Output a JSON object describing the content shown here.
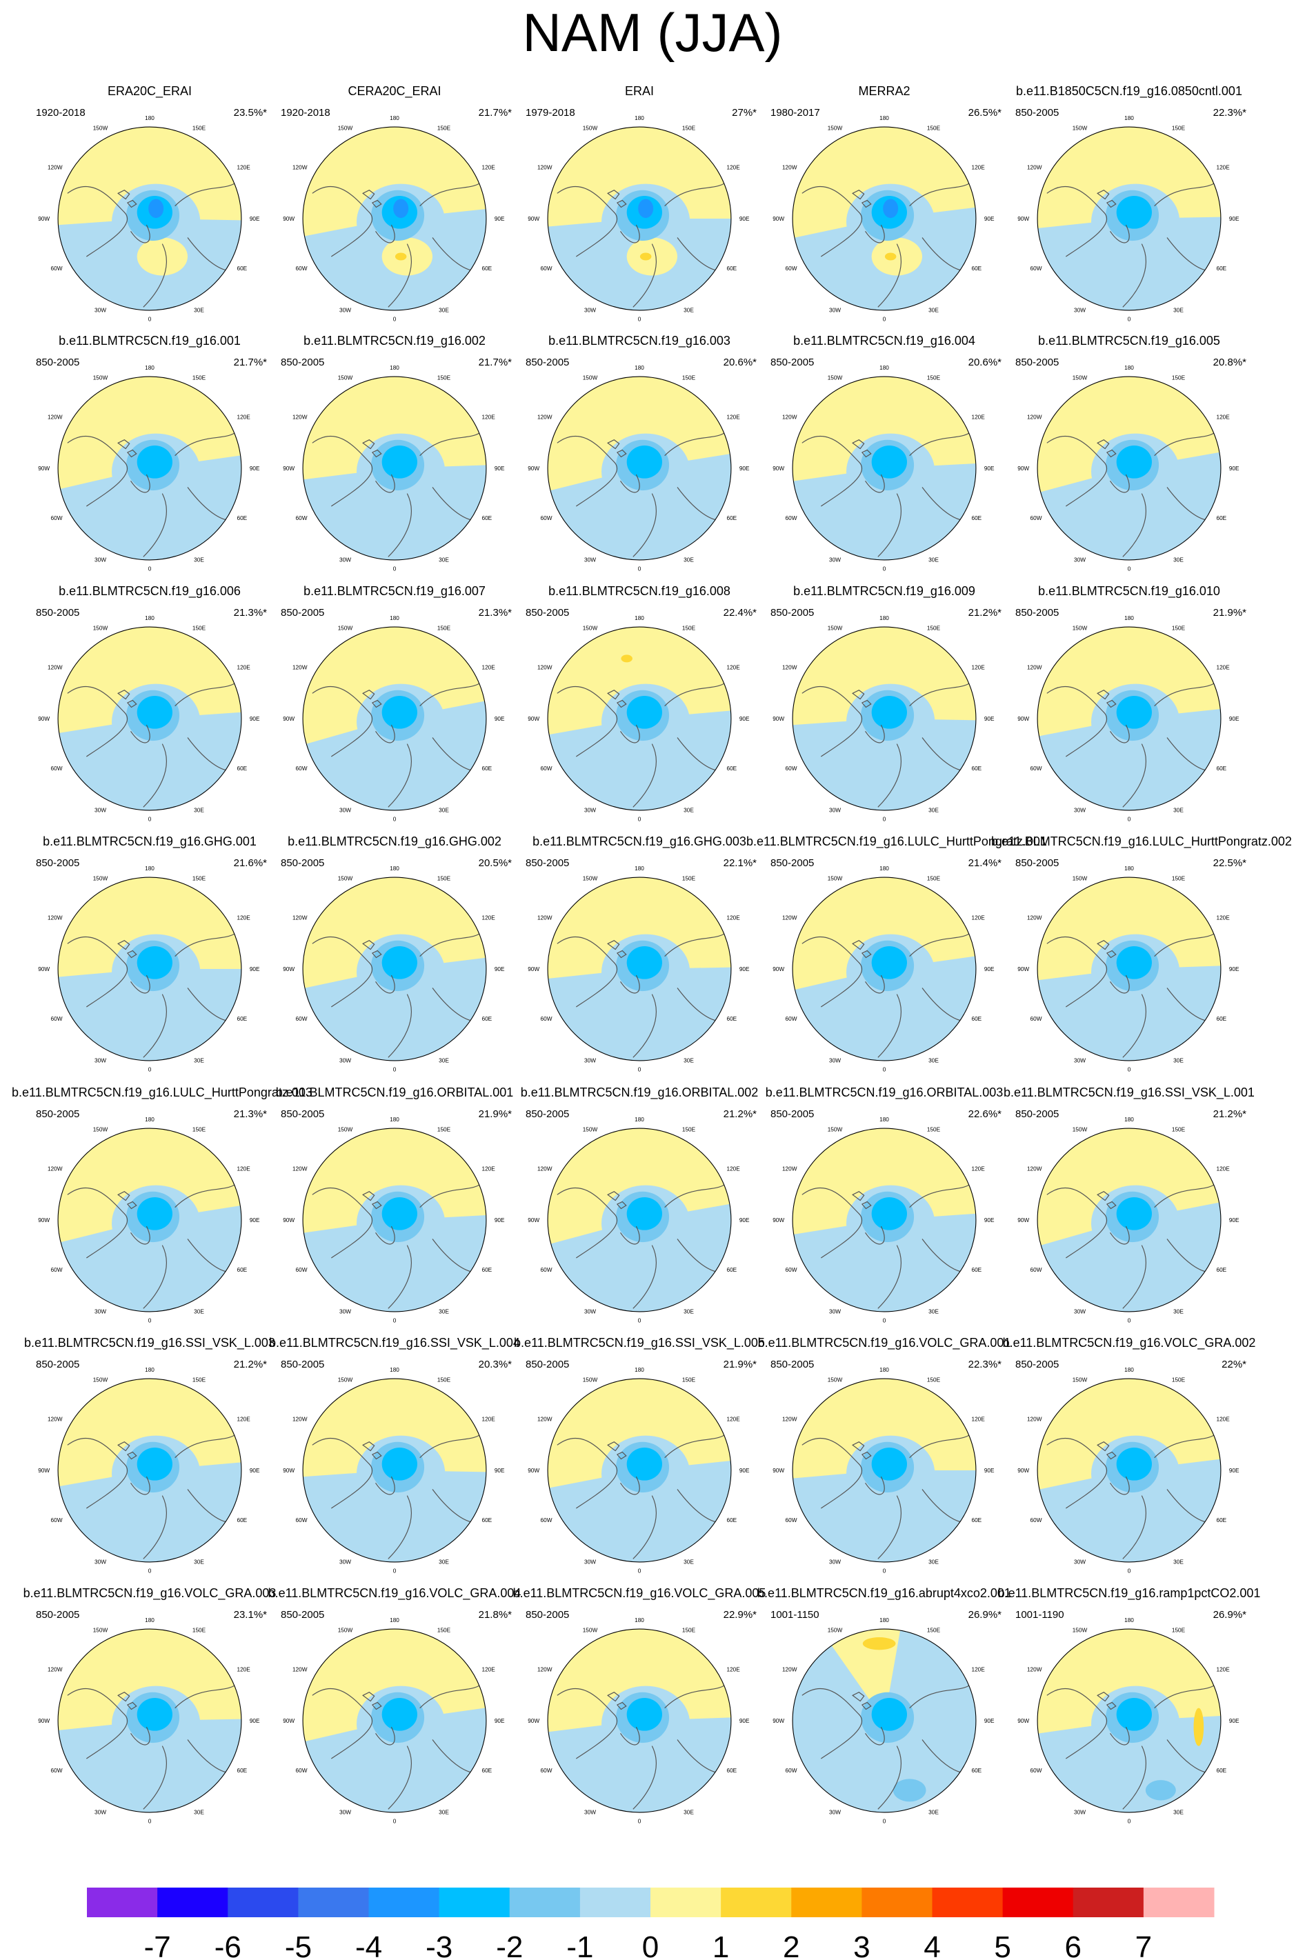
{
  "title": "NAM (JJA)",
  "panels": [
    {
      "name": "ERA20C_ERAI",
      "years": "1920-2018",
      "pct": "23.5%*"
    },
    {
      "name": "CERA20C_ERAI",
      "years": "1920-2018",
      "pct": "21.7%*"
    },
    {
      "name": "ERAI",
      "years": "1979-2018",
      "pct": "27%*"
    },
    {
      "name": "MERRA2",
      "years": "1980-2017",
      "pct": "26.5%*"
    },
    {
      "name": "b.e11.B1850C5CN.f19_g16.0850cntl.001",
      "years": "850-2005",
      "pct": "22.3%*"
    },
    {
      "name": "b.e11.BLMTRC5CN.f19_g16.001",
      "years": "850-2005",
      "pct": "21.7%*"
    },
    {
      "name": "b.e11.BLMTRC5CN.f19_g16.002",
      "years": "850-2005",
      "pct": "21.7%*"
    },
    {
      "name": "b.e11.BLMTRC5CN.f19_g16.003",
      "years": "850-2005",
      "pct": "20.6%*"
    },
    {
      "name": "b.e11.BLMTRC5CN.f19_g16.004",
      "years": "850-2005",
      "pct": "20.6%*"
    },
    {
      "name": "b.e11.BLMTRC5CN.f19_g16.005",
      "years": "850-2005",
      "pct": "20.8%*"
    },
    {
      "name": "b.e11.BLMTRC5CN.f19_g16.006",
      "years": "850-2005",
      "pct": "21.3%*"
    },
    {
      "name": "b.e11.BLMTRC5CN.f19_g16.007",
      "years": "850-2005",
      "pct": "21.3%*"
    },
    {
      "name": "b.e11.BLMTRC5CN.f19_g16.008",
      "years": "850-2005",
      "pct": "22.4%*"
    },
    {
      "name": "b.e11.BLMTRC5CN.f19_g16.009",
      "years": "850-2005",
      "pct": "21.2%*"
    },
    {
      "name": "b.e11.BLMTRC5CN.f19_g16.010",
      "years": "850-2005",
      "pct": "21.9%*"
    },
    {
      "name": "b.e11.BLMTRC5CN.f19_g16.GHG.001",
      "years": "850-2005",
      "pct": "21.6%*"
    },
    {
      "name": "b.e11.BLMTRC5CN.f19_g16.GHG.002",
      "years": "850-2005",
      "pct": "20.5%*"
    },
    {
      "name": "b.e11.BLMTRC5CN.f19_g16.GHG.003",
      "years": "850-2005",
      "pct": "22.1%*"
    },
    {
      "name": "b.e11.BLMTRC5CN.f19_g16.LULC_HurttPongratz.001",
      "years": "850-2005",
      "pct": "21.4%*"
    },
    {
      "name": "b.e11.BLMTRC5CN.f19_g16.LULC_HurttPongratz.002",
      "years": "850-2005",
      "pct": "22.5%*"
    },
    {
      "name": "b.e11.BLMTRC5CN.f19_g16.LULC_HurttPongratz.003",
      "years": "850-2005",
      "pct": "21.3%*"
    },
    {
      "name": "b.e11.BLMTRC5CN.f19_g16.ORBITAL.001",
      "years": "850-2005",
      "pct": "21.9%*"
    },
    {
      "name": "b.e11.BLMTRC5CN.f19_g16.ORBITAL.002",
      "years": "850-2005",
      "pct": "21.2%*"
    },
    {
      "name": "b.e11.BLMTRC5CN.f19_g16.ORBITAL.003",
      "years": "850-2005",
      "pct": "22.6%*"
    },
    {
      "name": "b.e11.BLMTRC5CN.f19_g16.SSI_VSK_L.001",
      "years": "850-2005",
      "pct": "21.2%*"
    },
    {
      "name": "b.e11.BLMTRC5CN.f19_g16.SSI_VSK_L.003",
      "years": "850-2005",
      "pct": "21.2%*"
    },
    {
      "name": "b.e11.BLMTRC5CN.f19_g16.SSI_VSK_L.004",
      "years": "850-2005",
      "pct": "20.3%*"
    },
    {
      "name": "b.e11.BLMTRC5CN.f19_g16.SSI_VSK_L.005",
      "years": "850-2005",
      "pct": "21.9%*"
    },
    {
      "name": "b.e11.BLMTRC5CN.f19_g16.VOLC_GRA.001",
      "years": "850-2005",
      "pct": "22.3%*"
    },
    {
      "name": "b.e11.BLMTRC5CN.f19_g16.VOLC_GRA.002",
      "years": "850-2005",
      "pct": "22%*"
    },
    {
      "name": "b.e11.BLMTRC5CN.f19_g16.VOLC_GRA.003",
      "years": "850-2005",
      "pct": "23.1%*"
    },
    {
      "name": "b.e11.BLMTRC5CN.f19_g16.VOLC_GRA.004",
      "years": "850-2005",
      "pct": "21.8%*"
    },
    {
      "name": "b.e11.BLMTRC5CN.f19_g16.VOLC_GRA.005",
      "years": "850-2005",
      "pct": "22.9%*"
    },
    {
      "name": "b.e11.BLMTRC5CN.f19_g16.abrupt4xco2.001",
      "years": "1001-1150",
      "pct": "26.9%*"
    },
    {
      "name": "b.e11.BLMTRC5CN.f19_g16.ramp1pctCO2.001",
      "years": "1001-1190",
      "pct": "26.9%*"
    }
  ],
  "map_labels": {
    "top": "180",
    "bottom": "0",
    "left": "90W",
    "right": "90E",
    "top_left": "150W",
    "top_right": "150E",
    "upper_left": "120W",
    "upper_right": "120E",
    "lower_left": "60W",
    "lower_right": "60E",
    "bottom_left": "30W",
    "bottom_right": "30E"
  },
  "colorbar": {
    "labels": [
      "-7",
      "-6",
      "-5",
      "-4",
      "-3",
      "-2",
      "-1",
      "0",
      "1",
      "2",
      "3",
      "4",
      "5",
      "6",
      "7"
    ],
    "colors": [
      "#8a2be8",
      "#1b00ff",
      "#2b4aee",
      "#3a78ee",
      "#1c96ff",
      "#00bfff",
      "#77c8f0",
      "#b0dcf2",
      "#fdf59a",
      "#fdd835",
      "#fda800",
      "#fd7a00",
      "#fd3a00",
      "#ee0000",
      "#cc1f1f",
      "#ffb3b3"
    ]
  },
  "chart_data": {
    "type": "heatmap",
    "title": "NAM (JJA)",
    "panel_count": 35,
    "layout": "7 rows x 5 columns",
    "projection": "north polar stereographic",
    "colorbar_range": [
      -7,
      7
    ],
    "colorbar_step": 1
  }
}
